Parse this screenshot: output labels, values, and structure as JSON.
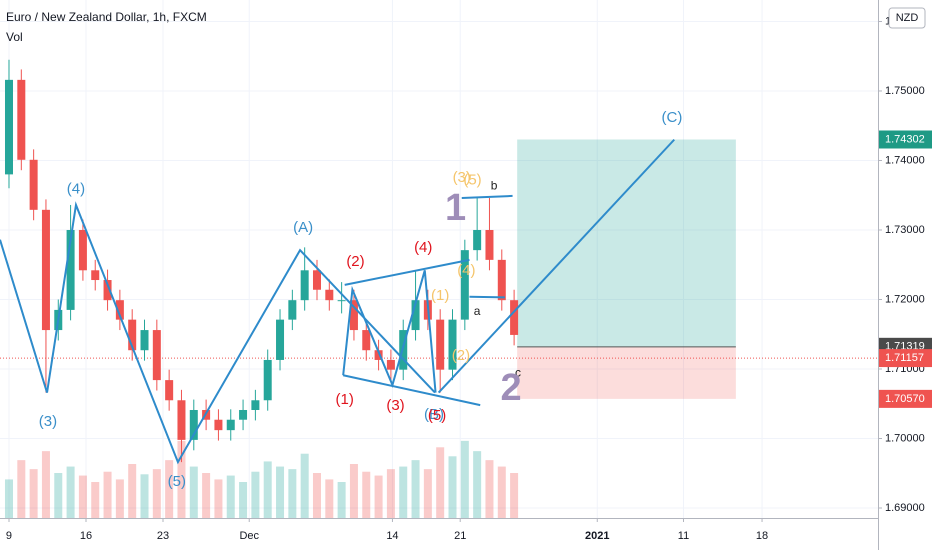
{
  "chart_data": {
    "type": "candlestick",
    "title": "Euro / New Zealand Dollar, 1h, FXCM",
    "subtitle": "Vol",
    "currency": "NZD",
    "xlim": [
      -0.584,
      56.43
    ],
    "ylim": [
      1.68856,
      1.76309
    ],
    "yticks": [
      {
        "value": 1.69,
        "label": "1.69000"
      },
      {
        "value": 1.7,
        "label": "1.70000"
      },
      {
        "value": 1.71,
        "label": "1.71000"
      },
      {
        "value": 1.72,
        "label": "1.72000"
      },
      {
        "value": 1.73,
        "label": "1.73000"
      },
      {
        "value": 1.74,
        "label": "1.74000"
      },
      {
        "value": 1.75,
        "label": "1.75000"
      },
      {
        "value": 1.76,
        "label": "1.76000"
      }
    ],
    "xticks": [
      {
        "value": 0,
        "label": "9"
      },
      {
        "value": 5,
        "label": "16"
      },
      {
        "value": 10,
        "label": "23"
      },
      {
        "value": 15.6,
        "label": "Dec"
      },
      {
        "value": 24.9,
        "label": "14"
      },
      {
        "value": 29.3,
        "label": "21"
      },
      {
        "value": 38.2,
        "label": "2021"
      },
      {
        "value": 43.8,
        "label": "11"
      },
      {
        "value": 48.9,
        "label": "18"
      }
    ],
    "grid": true,
    "up_color": "#26a69a",
    "down_color": "#ef5350",
    "x": [
      0,
      0.8,
      1.6,
      2.4,
      3.2,
      4,
      4.8,
      5.6,
      6.4,
      7.2,
      8,
      8.8,
      9.6,
      10.4,
      11.2,
      12,
      12.8,
      13.6,
      14.4,
      15.2,
      16,
      16.8,
      17.6,
      18.4,
      19.2,
      20,
      20.8,
      21.6,
      22.4,
      23.2,
      24,
      24.8,
      25.6,
      26.4,
      27.2,
      28,
      28.8,
      29.6,
      30.4,
      31.2,
      32,
      32.8
    ],
    "open": [
      1.738,
      1.7516,
      1.7401,
      1.7329,
      1.7156,
      1.7185,
      1.73,
      1.7242,
      1.7228,
      1.7199,
      1.7171,
      1.7127,
      1.7156,
      1.7084,
      1.7055,
      1.6998,
      1.7041,
      1.7027,
      1.7012,
      1.7027,
      1.7041,
      1.7055,
      1.7113,
      1.7171,
      1.7199,
      1.7242,
      1.7214,
      1.7199,
      1.7199,
      1.7156,
      1.7127,
      1.7113,
      1.7099,
      1.7156,
      1.7199,
      1.7171,
      1.7099,
      1.7171,
      1.7271,
      1.73,
      1.7257,
      1.7199
    ],
    "high": [
      1.7545,
      1.7531,
      1.7416,
      1.7344,
      1.72,
      1.7336,
      1.7315,
      1.7257,
      1.7243,
      1.7214,
      1.7186,
      1.7171,
      1.7171,
      1.7099,
      1.707,
      1.7056,
      1.7056,
      1.7042,
      1.7042,
      1.7056,
      1.707,
      1.7128,
      1.7186,
      1.7214,
      1.7275,
      1.7257,
      1.7229,
      1.7225,
      1.7214,
      1.7171,
      1.7142,
      1.7128,
      1.7171,
      1.7242,
      1.7214,
      1.7186,
      1.7186,
      1.7286,
      1.7346,
      1.7346,
      1.7272,
      1.7214
    ],
    "low": [
      1.736,
      1.7386,
      1.7314,
      1.7066,
      1.7141,
      1.717,
      1.7227,
      1.7213,
      1.7184,
      1.7156,
      1.7112,
      1.7112,
      1.7069,
      1.704,
      1.6966,
      1.6983,
      1.7012,
      1.6997,
      1.6997,
      1.7012,
      1.7026,
      1.704,
      1.7098,
      1.7156,
      1.7184,
      1.7199,
      1.7184,
      1.718,
      1.7141,
      1.7112,
      1.7098,
      1.7084,
      1.7084,
      1.7141,
      1.7156,
      1.7066,
      1.7084,
      1.7156,
      1.7256,
      1.7242,
      1.7184,
      1.7134
    ],
    "close": [
      1.7516,
      1.7401,
      1.7329,
      1.7156,
      1.7185,
      1.73,
      1.7242,
      1.7228,
      1.7199,
      1.7171,
      1.7127,
      1.7156,
      1.7084,
      1.7055,
      1.6998,
      1.7041,
      1.7027,
      1.7012,
      1.7027,
      1.7041,
      1.7055,
      1.7113,
      1.7171,
      1.7199,
      1.7242,
      1.7214,
      1.7199,
      1.7199,
      1.7156,
      1.7127,
      1.7113,
      1.7099,
      1.7156,
      1.7199,
      1.7171,
      1.7099,
      1.7171,
      1.7271,
      1.73,
      1.7257,
      1.7199,
      1.7149
    ],
    "volume": [
      30,
      45,
      38,
      52,
      35,
      40,
      33,
      28,
      36,
      30,
      42,
      34,
      38,
      45,
      60,
      40,
      35,
      30,
      33,
      28,
      36,
      44,
      40,
      38,
      50,
      35,
      30,
      28,
      42,
      36,
      33,
      38,
      40,
      45,
      38,
      55,
      48,
      60,
      52,
      45,
      40,
      35
    ],
    "vlim": [
      0,
      70
    ],
    "last_price": 1.71157,
    "position": {
      "x_start": 33.0,
      "x_end": 47.2,
      "target": 1.74302,
      "entry": 1.71319,
      "stop": {
        "value": 1.7057,
        "label": "1.70570"
      }
    },
    "lines": [
      {
        "color": "#2e8bcb",
        "x": [
          -0.584,
          2.47,
          4.35,
          10.97,
          18.9,
          27.66
        ],
        "y": [
          1.7286,
          1.7066,
          1.7336,
          1.6966,
          1.7271,
          1.7066
        ]
      },
      {
        "color": "#2e8bcb",
        "x": [
          21.7,
          22.3,
          24.9,
          27.0,
          27.7
        ],
        "y": [
          1.7091,
          1.7214,
          1.7077,
          1.7242,
          1.7066
        ]
      },
      {
        "color": "#2e8bcb",
        "x": [
          27.9,
          43.2
        ],
        "y": [
          1.7066,
          1.743
        ]
      },
      {
        "color": "#2e8bcb",
        "x": [
          21.8,
          29.9
        ],
        "y": [
          1.7221,
          1.7257
        ]
      },
      {
        "color": "#2e8bcb",
        "x": [
          21.7,
          30.6
        ],
        "y": [
          1.7091,
          1.7048
        ]
      },
      {
        "color": "#2e8bcb",
        "x": [
          29.4,
          32.7
        ],
        "y": [
          1.7346,
          1.7349
        ]
      },
      {
        "color": "#2e8bcb",
        "x": [
          29.9,
          32.2
        ],
        "y": [
          1.7204,
          1.7203
        ]
      }
    ],
    "wave_labels": [
      {
        "text": "(4)",
        "x": 4.35,
        "y": 1.7358,
        "color": "#3a8fc9"
      },
      {
        "text": "(3)",
        "x": 2.53,
        "y": 1.7024,
        "color": "#3a8fc9"
      },
      {
        "text": "(5)",
        "x": 10.9,
        "y": 1.6937,
        "color": "#3a8fc9"
      },
      {
        "text": "(A)",
        "x": 19.1,
        "y": 1.7303,
        "color": "#3a8fc9"
      },
      {
        "text": "(C)",
        "x": 43.05,
        "y": 1.7461,
        "color": "#3a8fc9"
      },
      {
        "text": "(B)",
        "x": 27.6,
        "y": 1.7034,
        "color": "#3a8fc9"
      },
      {
        "text": "(1)",
        "x": 21.8,
        "y": 1.7055,
        "color": "#e0141e"
      },
      {
        "text": "(2)",
        "x": 22.5,
        "y": 1.7254,
        "color": "#e0141e"
      },
      {
        "text": "(3)",
        "x": 25.1,
        "y": 1.7047,
        "color": "#e0141e"
      },
      {
        "text": "(4)",
        "x": 26.9,
        "y": 1.7274,
        "color": "#e0141e"
      },
      {
        "text": "(5)",
        "x": 27.8,
        "y": 1.7032,
        "color": "#e0141e"
      },
      {
        "text": "(3)",
        "x": 29.4,
        "y": 1.7375,
        "color": "#f5c56b"
      },
      {
        "text": "(5)",
        "x": 30.1,
        "y": 1.7371,
        "color": "#f5c56b"
      },
      {
        "text": "(1)",
        "x": 28.0,
        "y": 1.7205,
        "color": "#f5c56b"
      },
      {
        "text": "(2)",
        "x": 29.35,
        "y": 1.7119,
        "color": "#f5c56b"
      },
      {
        "text": "(4)",
        "x": 29.7,
        "y": 1.7241,
        "color": "#f5c56b"
      },
      {
        "text": "a",
        "x": 30.4,
        "y": 1.7182,
        "color": "#222222"
      },
      {
        "text": "b",
        "x": 31.5,
        "y": 1.7363,
        "color": "#222222"
      },
      {
        "text": "c",
        "x": 33.05,
        "y": 1.7094,
        "color": "#222222"
      }
    ],
    "big_labels": [
      {
        "text": "1",
        "x": 29.0,
        "y": 1.7329,
        "color": "#9e8db8"
      },
      {
        "text": "2",
        "x": 32.6,
        "y": 1.707,
        "color": "#9e8db8"
      }
    ]
  }
}
